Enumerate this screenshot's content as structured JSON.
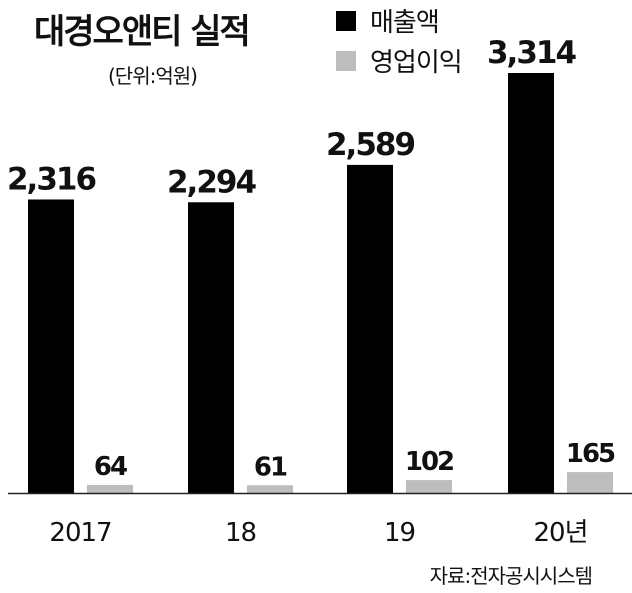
{
  "chart_data": {
    "type": "bar",
    "title": "대경오앤티 실적",
    "unit": "(단위:억원)",
    "source": "자료:전자공시시스템",
    "categories": [
      "2017",
      "18",
      "19",
      "20년"
    ],
    "series": [
      {
        "name": "매출액",
        "values": [
          2316,
          2294,
          2589,
          3314
        ],
        "labels": [
          "2,316",
          "2,294",
          "2,589",
          "3,314"
        ],
        "color": "#000000"
      },
      {
        "name": "영업이익",
        "values": [
          64,
          61,
          102,
          165
        ],
        "labels": [
          "64",
          "61",
          "102",
          "165"
        ],
        "color": "#bdbdbd"
      }
    ],
    "ylim": [
      0,
      3314
    ],
    "grid": false,
    "legend_position": "top-right"
  }
}
